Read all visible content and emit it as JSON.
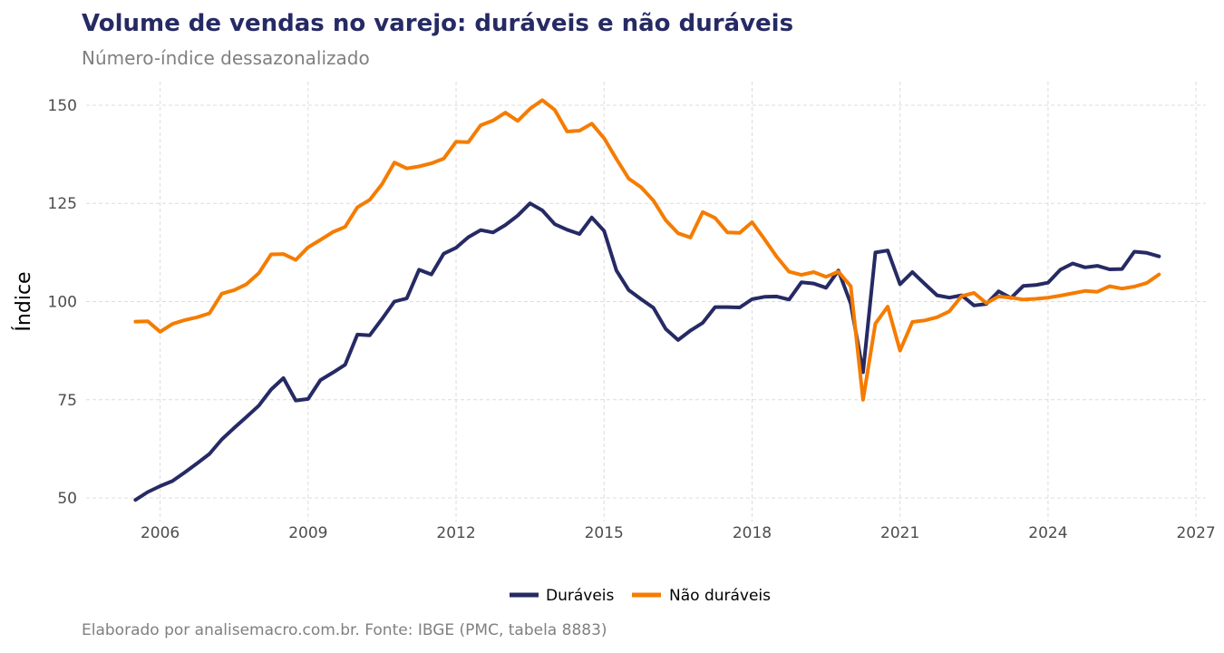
{
  "title": "Volume de vendas no varejo: duráveis e não duráveis",
  "subtitle": "Número-índice dessazonalizado",
  "caption": "Elaborado por analisemacro.com.br. Fonte: IBGE (PMC, tabela 8883)",
  "colors": {
    "duraveis": "#262a64",
    "nao_duraveis": "#f57c00",
    "grid": "#dcdcdc"
  },
  "chart_data": {
    "type": "line",
    "title": "Volume de vendas no varejo: duráveis e não duráveis",
    "subtitle": "Número-índice dessazonalizado",
    "xlabel": "",
    "ylabel": "Índice",
    "xlim": [
      2004.5,
      2027.2
    ],
    "ylim": [
      44,
      156
    ],
    "xticks": [
      2006,
      2009,
      2012,
      2015,
      2018,
      2021,
      2024,
      2027
    ],
    "yticks": [
      50,
      75,
      100,
      125,
      150
    ],
    "grid": true,
    "legend_position": "bottom-center",
    "series": [
      {
        "name": "Duráveis",
        "color": "#262a64",
        "x": [
          2005.5,
          2005.75,
          2006.0,
          2006.25,
          2006.5,
          2006.75,
          2007.0,
          2007.25,
          2007.5,
          2007.75,
          2008.0,
          2008.25,
          2008.5,
          2008.75,
          2009.0,
          2009.25,
          2009.5,
          2009.75,
          2010.0,
          2010.25,
          2010.5,
          2010.75,
          2011.0,
          2011.25,
          2011.5,
          2011.75,
          2012.0,
          2012.25,
          2012.5,
          2012.75,
          2013.0,
          2013.25,
          2013.5,
          2013.75,
          2014.0,
          2014.25,
          2014.5,
          2014.75,
          2015.0,
          2015.25,
          2015.5,
          2015.75,
          2016.0,
          2016.25,
          2016.5,
          2016.75,
          2017.0,
          2017.25,
          2017.5,
          2017.75,
          2018.0,
          2018.25,
          2018.5,
          2018.75,
          2019.0,
          2019.25,
          2019.5,
          2019.75,
          2020.0,
          2020.25,
          2020.5,
          2020.75,
          2021.0,
          2021.25,
          2021.5,
          2021.75,
          2022.0,
          2022.25,
          2022.5,
          2022.75,
          2023.0,
          2023.25,
          2023.5,
          2023.75,
          2024.0,
          2024.25,
          2024.5,
          2024.75,
          2025.0,
          2025.25,
          2025.5,
          2025.75,
          2026.0,
          2026.25
        ],
        "y": [
          49.5,
          51.5,
          53,
          54.3,
          56.5,
          58.8,
          61.2,
          64.9,
          67.8,
          70.6,
          73.5,
          77.6,
          80.5,
          74.8,
          75.2,
          80,
          81.9,
          83.9,
          91.6,
          91.4,
          95.6,
          100,
          100.8,
          108.1,
          106.9,
          112.2,
          113.7,
          116.4,
          118.2,
          117.6,
          119.5,
          121.9,
          125,
          123.2,
          119.7,
          118.3,
          117.2,
          121.4,
          118,
          107.9,
          102.9,
          100.6,
          98.4,
          93,
          90.2,
          92.6,
          94.6,
          98.6,
          98.6,
          98.5,
          100.6,
          101.2,
          101.3,
          100.5,
          104.9,
          104.6,
          103.5,
          107.9,
          99.5,
          82,
          112.5,
          113,
          104.4,
          107.5,
          104.5,
          101.6,
          101,
          101.6,
          99,
          99.4,
          102.6,
          100.9,
          104,
          104.2,
          104.8,
          108.1,
          109.7,
          108.7,
          109.1,
          108.2,
          108.3,
          112.7,
          112.4,
          111.5
        ]
      },
      {
        "name": "Não duráveis",
        "color": "#f57c00",
        "x": [
          2005.5,
          2005.75,
          2006.0,
          2006.25,
          2006.5,
          2006.75,
          2007.0,
          2007.25,
          2007.5,
          2007.75,
          2008.0,
          2008.25,
          2008.5,
          2008.75,
          2009.0,
          2009.25,
          2009.5,
          2009.75,
          2010.0,
          2010.25,
          2010.5,
          2010.75,
          2011.0,
          2011.25,
          2011.5,
          2011.75,
          2012.0,
          2012.25,
          2012.5,
          2012.75,
          2013.0,
          2013.25,
          2013.5,
          2013.75,
          2014.0,
          2014.25,
          2014.5,
          2014.75,
          2015.0,
          2015.25,
          2015.5,
          2015.75,
          2016.0,
          2016.25,
          2016.5,
          2016.75,
          2017.0,
          2017.25,
          2017.5,
          2017.75,
          2018.0,
          2018.25,
          2018.5,
          2018.75,
          2019.0,
          2019.25,
          2019.5,
          2019.75,
          2020.0,
          2020.25,
          2020.5,
          2020.75,
          2021.0,
          2021.25,
          2021.5,
          2021.75,
          2022.0,
          2022.25,
          2022.5,
          2022.75,
          2023.0,
          2023.25,
          2023.5,
          2023.75,
          2024.0,
          2024.25,
          2024.5,
          2024.75,
          2025.0,
          2025.25,
          2025.5,
          2025.75,
          2026.0,
          2026.25
        ],
        "y": [
          94.9,
          95,
          92.3,
          94.3,
          95.3,
          96,
          97,
          102,
          102.9,
          104.4,
          107.2,
          112,
          112.1,
          110.6,
          113.8,
          115.7,
          117.7,
          119,
          124,
          125.9,
          129.9,
          135.4,
          133.9,
          134.4,
          135.2,
          136.4,
          140.7,
          140.6,
          144.9,
          146.1,
          148.1,
          146,
          149.1,
          151.3,
          148.8,
          143.3,
          143.5,
          145.3,
          141.6,
          136.3,
          131.3,
          129.1,
          125.7,
          120.7,
          117.4,
          116.3,
          122.8,
          121.3,
          117.6,
          117.5,
          120.2,
          115.9,
          111.4,
          107.6,
          106.8,
          107.5,
          106.3,
          107.6,
          103.9,
          75,
          94.4,
          98.7,
          87.5,
          94.8,
          95.2,
          96,
          97.5,
          101.4,
          102.2,
          99.6,
          101.3,
          101,
          100.5,
          100.7,
          101,
          101.5,
          102.1,
          102.7,
          102.5,
          103.9,
          103.3,
          103.8,
          104.7,
          106.9
        ]
      }
    ]
  }
}
